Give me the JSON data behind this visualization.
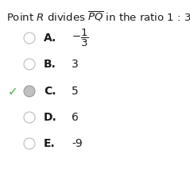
{
  "title_parts": [
    "Point ",
    "R",
    " divides ",
    "PQ",
    " in the ratio 1 : 3."
  ],
  "title_raw": "Point $R$ divides $\\overline{PQ}$ in the ratio 1 : 3.",
  "options": [
    {
      "letter": "A.",
      "text_plain": null,
      "text_frac": true,
      "frac_num": "1",
      "frac_den": "3",
      "frac_sign": true,
      "selected": false,
      "correct": false
    },
    {
      "letter": "B.",
      "text_plain": "3",
      "text_frac": false,
      "selected": false,
      "correct": false
    },
    {
      "letter": "C.",
      "text_plain": "5",
      "text_frac": false,
      "selected": true,
      "correct": true
    },
    {
      "letter": "D.",
      "text_plain": "6",
      "text_frac": false,
      "selected": false,
      "correct": false
    },
    {
      "letter": "E.",
      "text_plain": "-9",
      "text_frac": false,
      "selected": false,
      "correct": false
    }
  ],
  "bg_color": "#ffffff",
  "text_color": "#1a1a1a",
  "radio_edge_color": "#bbbbbb",
  "radio_face_color": "#ffffff",
  "selected_face_color": "#c0c0c0",
  "selected_edge_color": "#999999",
  "checkmark_color": "#4caf50",
  "title_fontsize": 9.5,
  "option_letter_fontsize": 10.0,
  "option_text_fontsize": 10.0,
  "checkmark_fontsize": 11.0
}
